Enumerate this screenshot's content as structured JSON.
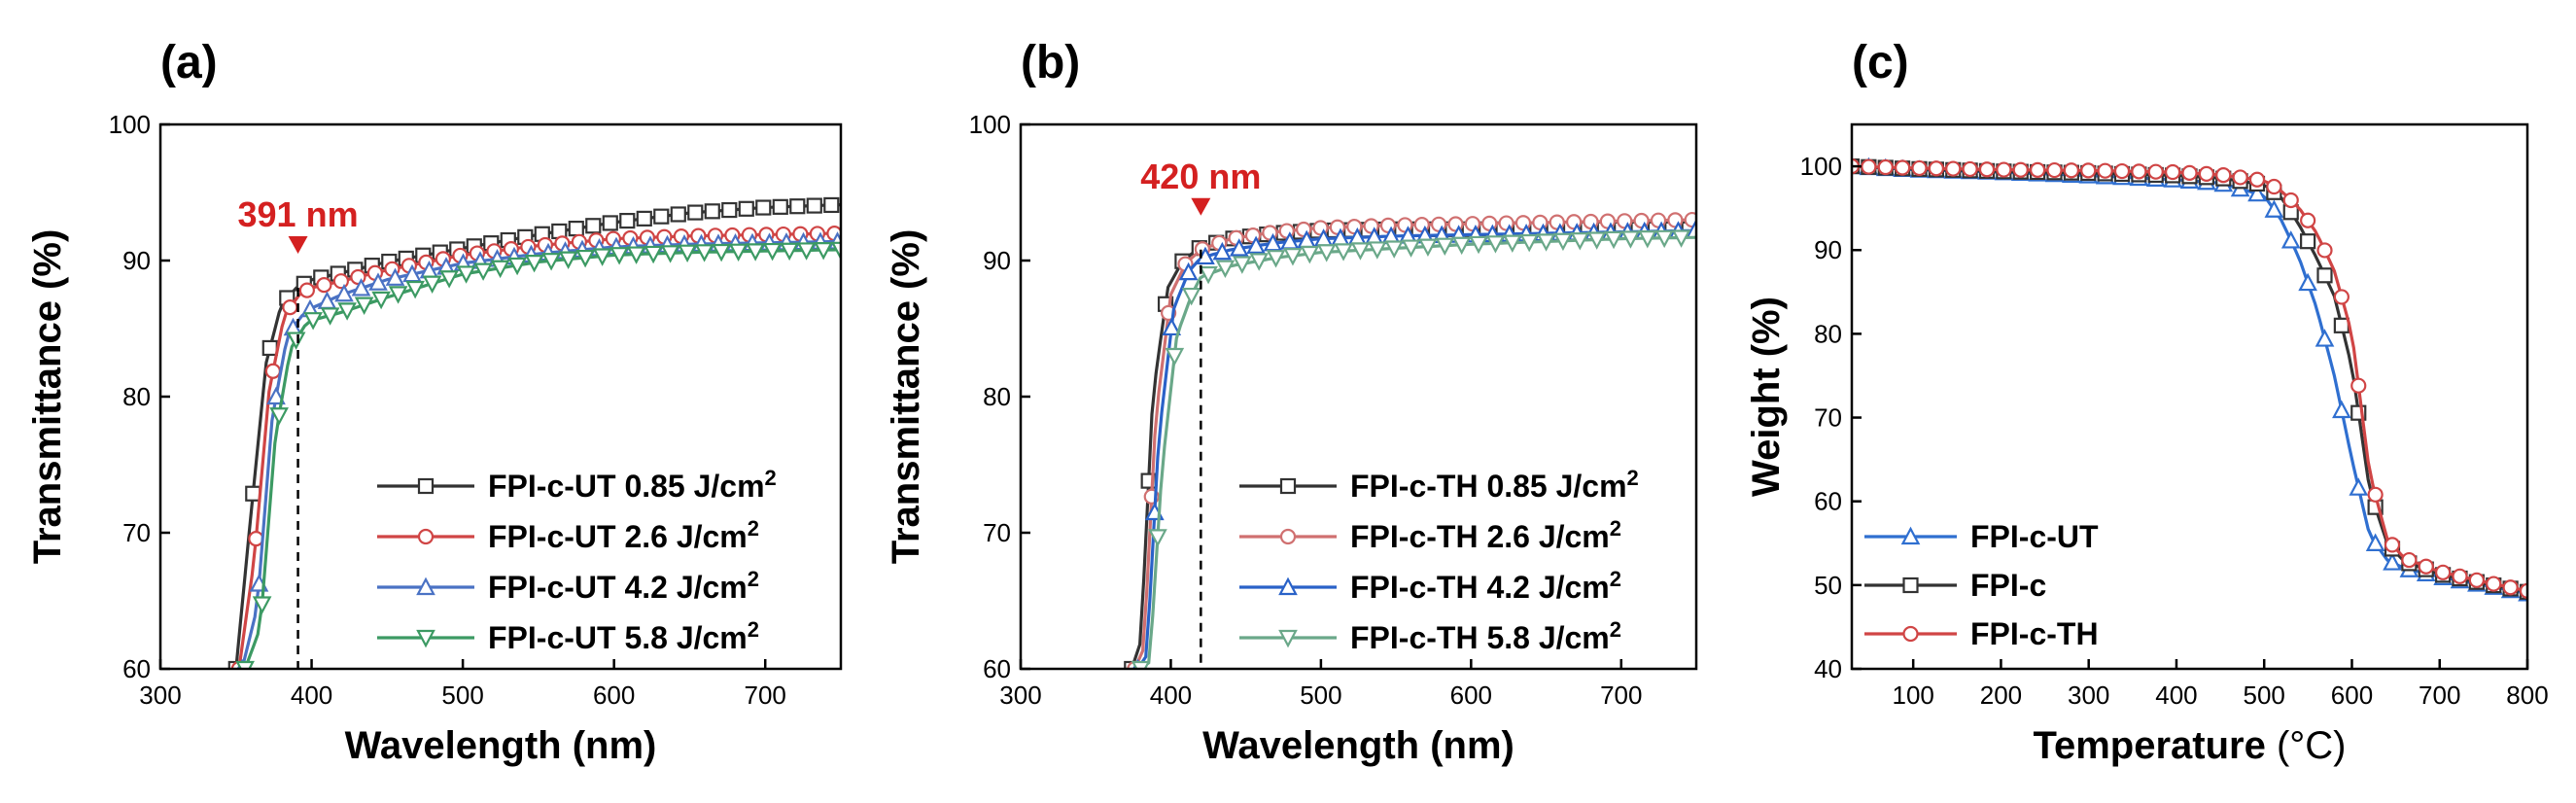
{
  "chart_data": [
    {
      "panel_label": "(a)",
      "type": "line",
      "xlabel": "Wavelength (nm)",
      "ylabel": "Transmittance (%)",
      "xlim": [
        300,
        750
      ],
      "ylim": [
        60,
        100
      ],
      "xticks": [
        300,
        400,
        500,
        600,
        700
      ],
      "yticks": [
        60,
        70,
        80,
        90,
        100
      ],
      "annotation": {
        "text": "391 nm",
        "x": 391,
        "y": 90.5,
        "color": "#d42020"
      },
      "cutoff_line": {
        "x": 391,
        "y_top": 88.0
      },
      "legend": {
        "placement": "bottom-right"
      },
      "series": [
        {
          "name": "FPI-c-UT 0.85 J/cm",
          "sup": "2",
          "color": "#333333",
          "marker": "square",
          "x": [
            350,
            360,
            370,
            380,
            390,
            400,
            420,
            450,
            500,
            550,
            600,
            650,
            700,
            750
          ],
          "y": [
            60,
            71.5,
            82.5,
            86.8,
            88.0,
            88.6,
            89.1,
            89.9,
            90.9,
            91.9,
            92.8,
            93.5,
            93.9,
            94.1
          ]
        },
        {
          "name": "FPI-c-UT 2.6 J/cm",
          "sup": "2",
          "color": "#d04545",
          "marker": "circle",
          "x": [
            352,
            362,
            372,
            382,
            392,
            400,
            420,
            450,
            500,
            550,
            600,
            650,
            700,
            750
          ],
          "y": [
            60,
            68.0,
            80.5,
            86.0,
            87.5,
            88.0,
            88.5,
            89.3,
            90.4,
            91.1,
            91.6,
            91.8,
            91.9,
            92.0
          ]
        },
        {
          "name": "FPI-c-UT 4.2 J/cm",
          "sup": "2",
          "color": "#4a72c4",
          "marker": "triangle-up",
          "x": [
            354,
            364,
            374,
            384,
            394,
            400,
            420,
            450,
            500,
            550,
            600,
            650,
            700,
            750
          ],
          "y": [
            60,
            64.5,
            78.5,
            84.5,
            86.0,
            86.5,
            87.5,
            88.6,
            89.8,
            90.5,
            91.0,
            91.2,
            91.3,
            91.4
          ]
        },
        {
          "name": "FPI-c-UT 5.8 J/cm",
          "sup": "2",
          "color": "#3c9a63",
          "marker": "triangle-down",
          "x": [
            356,
            366,
            376,
            386,
            396,
            400,
            420,
            450,
            500,
            550,
            600,
            650,
            700,
            750
          ],
          "y": [
            60,
            63.0,
            77.0,
            83.5,
            85.3,
            85.6,
            86.2,
            87.3,
            89.0,
            89.9,
            90.4,
            90.6,
            90.7,
            90.8
          ]
        }
      ]
    },
    {
      "panel_label": "(b)",
      "type": "line",
      "xlabel": "Wavelength (nm)",
      "ylabel": "Transmittance (%)",
      "xlim": [
        300,
        750
      ],
      "ylim": [
        60,
        100
      ],
      "xticks": [
        300,
        400,
        500,
        600,
        700
      ],
      "yticks": [
        60,
        70,
        80,
        90,
        100
      ],
      "annotation": {
        "text": "420 nm",
        "x": 420,
        "y": 93.3,
        "color": "#d42020"
      },
      "cutoff_line": {
        "x": 420,
        "y_top": 90.8
      },
      "legend": {
        "placement": "bottom-right"
      },
      "series": [
        {
          "name": "FPI-c-TH 0.85 J/cm",
          "sup": "2",
          "color": "#333333",
          "marker": "square",
          "x": [
            374,
            380,
            388,
            398,
            408,
            420,
            440,
            470,
            500,
            550,
            600,
            650,
            700,
            750
          ],
          "y": [
            60,
            62.0,
            80.0,
            88.0,
            90.0,
            91.0,
            91.6,
            92.0,
            92.2,
            92.3,
            92.3,
            92.3,
            92.3,
            92.3
          ]
        },
        {
          "name": "FPI-c-TH 2.6 J/cm",
          "sup": "2",
          "color": "#d07070",
          "marker": "circle",
          "x": [
            376,
            382,
            390,
            400,
            410,
            420,
            440,
            470,
            500,
            550,
            600,
            650,
            700,
            750
          ],
          "y": [
            60,
            61.5,
            78.5,
            87.5,
            89.8,
            90.8,
            91.6,
            92.1,
            92.4,
            92.6,
            92.7,
            92.8,
            92.9,
            93.0
          ]
        },
        {
          "name": "FPI-c-TH 4.2 J/cm",
          "sup": "2",
          "color": "#2a62c8",
          "marker": "triangle-up",
          "x": [
            378,
            384,
            392,
            402,
            412,
            420,
            440,
            470,
            500,
            550,
            600,
            650,
            700,
            750
          ],
          "y": [
            60,
            61.0,
            77.0,
            86.5,
            89.2,
            90.2,
            90.8,
            91.3,
            91.6,
            91.8,
            91.9,
            92.0,
            92.1,
            92.2
          ]
        },
        {
          "name": "FPI-c-TH 5.8 J/cm",
          "sup": "2",
          "color": "#6aa889",
          "marker": "triangle-down",
          "x": [
            380,
            386,
            394,
            404,
            414,
            420,
            440,
            470,
            500,
            550,
            600,
            650,
            700,
            750
          ],
          "y": [
            60,
            60.5,
            74.5,
            84.5,
            87.5,
            88.8,
            89.6,
            90.2,
            90.6,
            90.9,
            91.2,
            91.4,
            91.6,
            91.7
          ]
        }
      ]
    },
    {
      "panel_label": "(c)",
      "type": "line",
      "xlabel": "Temperature (°C)",
      "ylabel": "Weight (%)",
      "xlim": [
        30,
        800
      ],
      "ylim": [
        40,
        105
      ],
      "xticks": [
        100,
        200,
        300,
        400,
        500,
        600,
        700,
        800
      ],
      "yticks": [
        40,
        50,
        60,
        70,
        80,
        90,
        100
      ],
      "legend": {
        "placement": "bottom-left"
      },
      "series": [
        {
          "name": "FPI-c-UT",
          "sup": "",
          "color": "#2f6fd0",
          "marker": "triangle-up",
          "x": [
            30,
            100,
            200,
            300,
            400,
            450,
            500,
            520,
            540,
            560,
            580,
            600,
            620,
            640,
            660,
            700,
            750,
            800
          ],
          "y": [
            100,
            99.6,
            99.3,
            98.9,
            98.4,
            98.0,
            96.5,
            93.5,
            89.0,
            83.0,
            75.0,
            65.0,
            56.0,
            53.0,
            52.0,
            51.0,
            50.0,
            49.0
          ]
        },
        {
          "name": "FPI-c",
          "sup": "",
          "color": "#333333",
          "marker": "square",
          "x": [
            30,
            100,
            200,
            300,
            400,
            450,
            500,
            520,
            540,
            560,
            580,
            600,
            620,
            640,
            660,
            700,
            750,
            800
          ],
          "y": [
            100,
            99.7,
            99.4,
            99.2,
            98.9,
            98.6,
            97.8,
            96.2,
            93.0,
            89.0,
            84.5,
            76.0,
            61.5,
            55.0,
            52.8,
            51.3,
            50.2,
            49.2
          ]
        },
        {
          "name": "FPI-c-TH",
          "sup": "",
          "color": "#d04545",
          "marker": "circle",
          "x": [
            30,
            100,
            200,
            300,
            400,
            450,
            500,
            520,
            540,
            560,
            580,
            600,
            620,
            640,
            660,
            700,
            750,
            800
          ],
          "y": [
            100,
            99.8,
            99.6,
            99.5,
            99.3,
            99.0,
            98.3,
            97.0,
            95.0,
            92.0,
            87.5,
            80.0,
            63.5,
            55.5,
            53.2,
            51.6,
            50.4,
            49.3
          ]
        }
      ]
    }
  ]
}
